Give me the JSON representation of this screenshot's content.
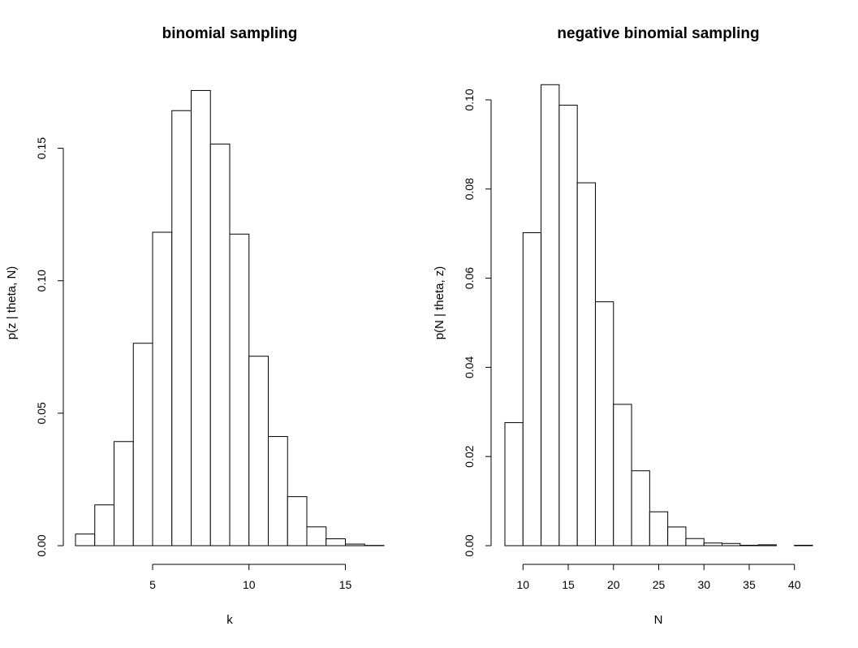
{
  "chart_data": [
    {
      "type": "bar",
      "title": "binomial sampling",
      "xlabel": "k",
      "ylabel": "p(z | theta, N)",
      "xlim": [
        1,
        17
      ],
      "ylim": [
        0,
        0.175
      ],
      "x_ticks": [
        5,
        10,
        15
      ],
      "y_ticks": [
        0.0,
        0.05,
        0.1,
        0.15
      ],
      "y_tick_labels": [
        "0.00",
        "0.05",
        "0.10",
        "0.15"
      ],
      "bins": [
        {
          "x0": 1.0,
          "x1": 2.0,
          "value": 0.0044
        },
        {
          "x0": 2.0,
          "x1": 3.0,
          "value": 0.0154
        },
        {
          "x0": 3.0,
          "x1": 4.0,
          "value": 0.0393
        },
        {
          "x0": 4.0,
          "x1": 5.0,
          "value": 0.0764
        },
        {
          "x0": 5.0,
          "x1": 6.0,
          "value": 0.1183
        },
        {
          "x0": 6.0,
          "x1": 7.0,
          "value": 0.1642
        },
        {
          "x0": 7.0,
          "x1": 8.0,
          "value": 0.1718
        },
        {
          "x0": 8.0,
          "x1": 9.0,
          "value": 0.1516
        },
        {
          "x0": 9.0,
          "x1": 10.0,
          "value": 0.1176
        },
        {
          "x0": 10.0,
          "x1": 11.0,
          "value": 0.0715
        },
        {
          "x0": 11.0,
          "x1": 12.0,
          "value": 0.0412
        },
        {
          "x0": 12.0,
          "x1": 13.0,
          "value": 0.0185
        },
        {
          "x0": 13.0,
          "x1": 14.0,
          "value": 0.0071
        },
        {
          "x0": 14.0,
          "x1": 15.0,
          "value": 0.0026
        },
        {
          "x0": 15.0,
          "x1": 16.0,
          "value": 0.0006
        },
        {
          "x0": 16.0,
          "x1": 17.0,
          "value": 0.0001
        }
      ]
    },
    {
      "type": "bar",
      "title": "negative binomial sampling",
      "xlabel": "N",
      "ylabel": "p(N | theta, z)",
      "xlim": [
        8,
        42
      ],
      "ylim": [
        0,
        0.104
      ],
      "x_ticks": [
        10,
        15,
        20,
        25,
        30,
        35,
        40
      ],
      "y_ticks": [
        0.0,
        0.02,
        0.04,
        0.06,
        0.08,
        0.1
      ],
      "y_tick_labels": [
        "0.00",
        "0.02",
        "0.04",
        "0.06",
        "0.08",
        "0.10"
      ],
      "bins": [
        {
          "x0": 8,
          "x1": 10,
          "value": 0.0276
        },
        {
          "x0": 10,
          "x1": 12,
          "value": 0.0702
        },
        {
          "x0": 12,
          "x1": 14,
          "value": 0.1034
        },
        {
          "x0": 14,
          "x1": 16,
          "value": 0.0988
        },
        {
          "x0": 16,
          "x1": 18,
          "value": 0.0814
        },
        {
          "x0": 18,
          "x1": 20,
          "value": 0.0547
        },
        {
          "x0": 20,
          "x1": 22,
          "value": 0.0317
        },
        {
          "x0": 22,
          "x1": 24,
          "value": 0.0168
        },
        {
          "x0": 24,
          "x1": 26,
          "value": 0.0076
        },
        {
          "x0": 26,
          "x1": 28,
          "value": 0.0042
        },
        {
          "x0": 28,
          "x1": 30,
          "value": 0.0016
        },
        {
          "x0": 30,
          "x1": 32,
          "value": 0.0006
        },
        {
          "x0": 32,
          "x1": 34,
          "value": 0.0005
        },
        {
          "x0": 34,
          "x1": 36,
          "value": 0.0001
        },
        {
          "x0": 36,
          "x1": 38,
          "value": 0.0002
        },
        {
          "x0": 38,
          "x1": 40,
          "value": 0.0
        },
        {
          "x0": 40,
          "x1": 42,
          "value": 0.0001
        }
      ]
    }
  ]
}
